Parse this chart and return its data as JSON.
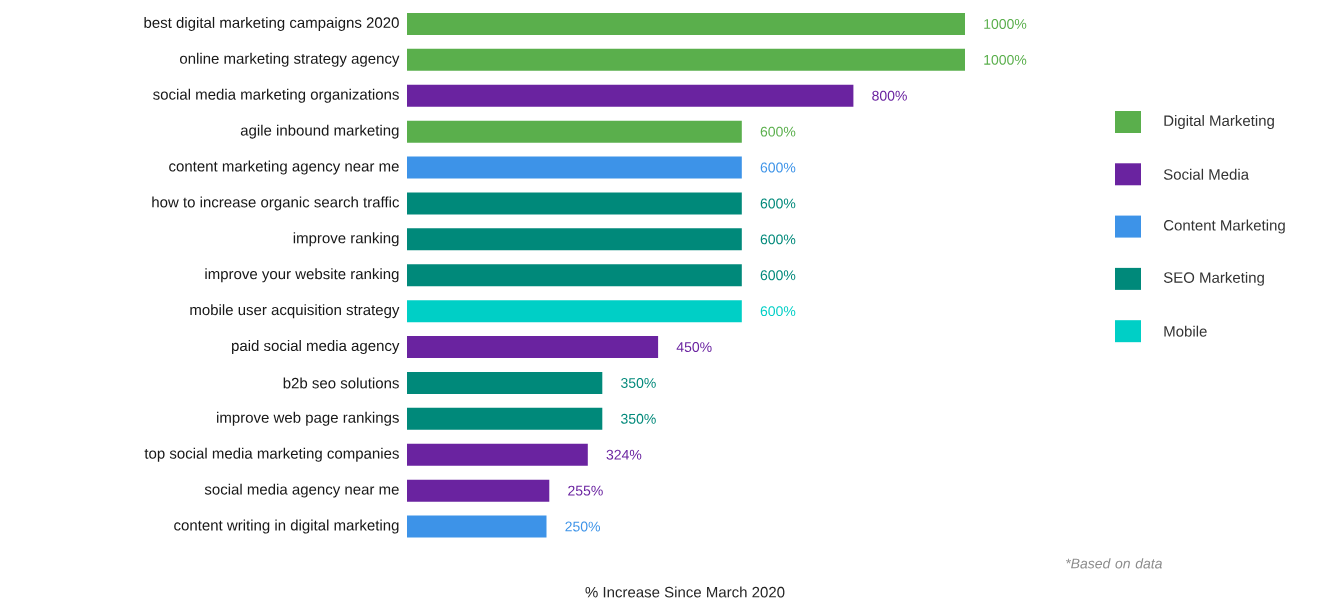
{
  "chart_data": {
    "type": "bar",
    "orientation": "horizontal",
    "categories": [
      "best digital marketing campaigns 2020",
      "online marketing strategy agency",
      "social media marketing organizations",
      "agile inbound marketing",
      "content marketing agency near me",
      "how to increase organic search traffic",
      "improve ranking",
      "improve your website ranking",
      "mobile user acquisition strategy",
      "paid social media agency",
      "b2b seo solutions",
      "improve web page rankings",
      "top social media marketing companies",
      "social media agency near me",
      "content writing in digital marketing"
    ],
    "series": [
      {
        "name": "Digital Marketing",
        "color": "#5aaf4c",
        "values": [
          1000,
          1000,
          null,
          600,
          null,
          null,
          null,
          null,
          null,
          null,
          null,
          null,
          null,
          null,
          null
        ],
        "value_labels": [
          "1000%",
          "1000%",
          null,
          "600%",
          null,
          null,
          null,
          null,
          null,
          null,
          null,
          null,
          null,
          null,
          null
        ]
      },
      {
        "name": "Social Media",
        "color": "#6a23a0",
        "values": [
          null,
          null,
          800,
          null,
          null,
          null,
          null,
          null,
          null,
          450,
          null,
          null,
          324,
          255,
          null
        ],
        "value_labels": [
          null,
          null,
          "800%",
          null,
          null,
          null,
          null,
          null,
          null,
          "450%",
          null,
          null,
          "324%",
          "255%",
          null
        ]
      },
      {
        "name": "Content Marketing",
        "color": "#3d93e8",
        "values": [
          null,
          null,
          null,
          null,
          600,
          null,
          null,
          null,
          null,
          null,
          null,
          null,
          null,
          null,
          250
        ],
        "value_labels": [
          null,
          null,
          null,
          null,
          "600%",
          null,
          null,
          null,
          null,
          null,
          null,
          null,
          null,
          null,
          "250%"
        ]
      },
      {
        "name": "SEO Marketing",
        "color": "#00897a",
        "values": [
          null,
          null,
          null,
          null,
          null,
          600,
          600,
          600,
          null,
          null,
          350,
          350,
          null,
          null,
          null
        ],
        "value_labels": [
          null,
          null,
          null,
          null,
          null,
          "600%",
          "600%",
          "600%",
          null,
          null,
          "350%",
          "350%",
          null,
          null,
          null
        ]
      },
      {
        "name": "Mobile",
        "color": "#00cfc6",
        "values": [
          null,
          null,
          null,
          null,
          null,
          null,
          null,
          null,
          600,
          null,
          null,
          null,
          null,
          null,
          null
        ],
        "value_labels": [
          null,
          null,
          null,
          null,
          null,
          null,
          null,
          null,
          "600%",
          null,
          null,
          null,
          null,
          null,
          null
        ]
      }
    ],
    "xlabel": "% Increase Since March 2020",
    "legend": "right",
    "annotations": [
      "*Based on data"
    ]
  }
}
